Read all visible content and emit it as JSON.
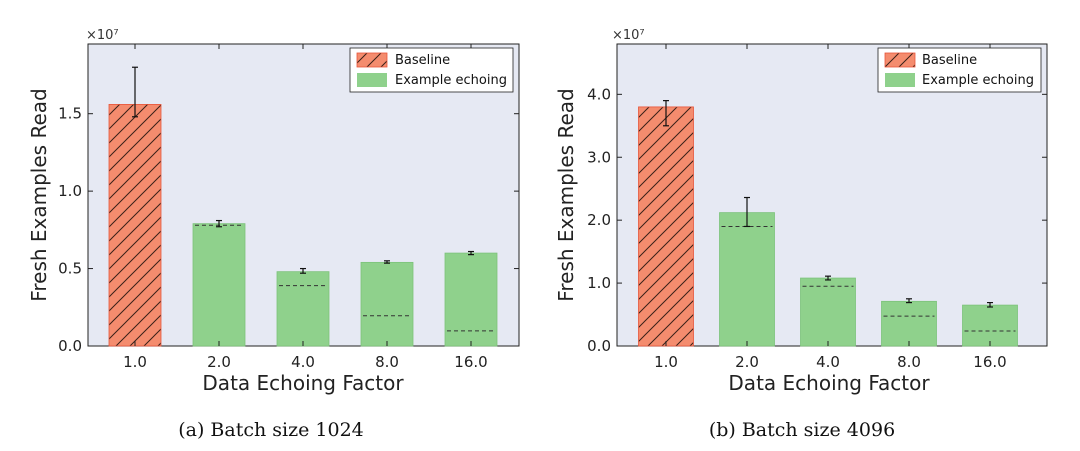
{
  "legend": {
    "baseline": "Baseline",
    "echoing": "Example echoing"
  },
  "colors": {
    "plot_bg": "#e6e9f3",
    "baseline_fill": "#f48c6e",
    "baseline_edge": "#e8553a",
    "echo_fill": "#8fd18c",
    "echo_edge": "#7cc27a"
  },
  "chart_data": [
    {
      "type": "bar",
      "caption": "(a) Batch size 1024",
      "xlabel": "Data Echoing Factor",
      "ylabel": "Fresh Examples Read",
      "y_multiplier": "×10⁷",
      "categories": [
        "1.0",
        "2.0",
        "4.0",
        "8.0",
        "16.0"
      ],
      "ylim": [
        0,
        1.95
      ],
      "yticks": [
        0.0,
        0.5,
        1.0,
        1.5
      ],
      "ytick_labels": [
        "0.0",
        "0.5",
        "1.0",
        "1.5"
      ],
      "legend_position": "top-right",
      "series": [
        {
          "name": "Baseline",
          "pattern": "hatched",
          "values": [
            1.56,
            null,
            null,
            null,
            null
          ],
          "errors": [
            [
              1.48,
              1.8
            ],
            null,
            null,
            null,
            null
          ]
        },
        {
          "name": "Example echoing",
          "values": [
            null,
            0.79,
            0.48,
            0.54,
            0.6
          ],
          "errors": [
            null,
            [
              0.77,
              0.81
            ],
            [
              0.47,
              0.5
            ],
            [
              0.535,
              0.55
            ],
            [
              0.59,
              0.61
            ]
          ],
          "dashed_reference": [
            null,
            0.78,
            0.39,
            0.195,
            0.098
          ]
        }
      ]
    },
    {
      "type": "bar",
      "caption": "(b) Batch size 4096",
      "xlabel": "Data Echoing Factor",
      "ylabel": "Fresh Examples Read",
      "y_multiplier": "×10⁷",
      "categories": [
        "1.0",
        "2.0",
        "4.0",
        "8.0",
        "16.0"
      ],
      "ylim": [
        0,
        4.8
      ],
      "yticks": [
        0.0,
        1.0,
        2.0,
        3.0,
        4.0
      ],
      "ytick_labels": [
        "0.0",
        "1.0",
        "2.0",
        "3.0",
        "4.0"
      ],
      "legend_position": "top-right",
      "series": [
        {
          "name": "Baseline",
          "pattern": "hatched",
          "values": [
            3.8,
            null,
            null,
            null,
            null
          ],
          "errors": [
            [
              3.5,
              3.9
            ],
            null,
            null,
            null,
            null
          ]
        },
        {
          "name": "Example echoing",
          "values": [
            null,
            2.12,
            1.08,
            0.71,
            0.65
          ],
          "errors": [
            null,
            [
              1.9,
              2.36
            ],
            [
              1.05,
              1.11
            ],
            [
              0.69,
              0.75
            ],
            [
              0.62,
              0.69
            ]
          ],
          "dashed_reference": [
            null,
            1.9,
            0.95,
            0.475,
            0.2375
          ]
        }
      ]
    }
  ]
}
